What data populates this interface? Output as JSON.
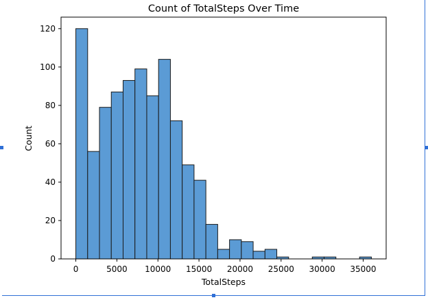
{
  "chart_data": {
    "type": "bar",
    "title": "Count of TotalSteps Over Time",
    "xlabel": "TotalSteps",
    "ylabel": "Count",
    "bin_edges": [
      0,
      1440,
      2880,
      4320,
      5760,
      7200,
      8640,
      10080,
      11520,
      12960,
      14400,
      15840,
      17280,
      18720,
      20160,
      21600,
      23040,
      24480,
      25920,
      27360,
      28800,
      30240,
      31680,
      33120,
      34560,
      36000
    ],
    "values": [
      120,
      56,
      79,
      87,
      93,
      99,
      85,
      104,
      72,
      49,
      41,
      18,
      5,
      10,
      9,
      4,
      5,
      1,
      0,
      0,
      1,
      1,
      0,
      0,
      1
    ],
    "xlim": [
      -1800,
      37800
    ],
    "ylim": [
      0,
      126
    ],
    "xticks": [
      0,
      5000,
      10000,
      15000,
      20000,
      25000,
      30000,
      35000
    ],
    "yticks": [
      0,
      20,
      40,
      60,
      80,
      100,
      120
    ],
    "grid": false,
    "bar_color": "#5b9bd5",
    "edge_color": "#1a1a1a"
  }
}
